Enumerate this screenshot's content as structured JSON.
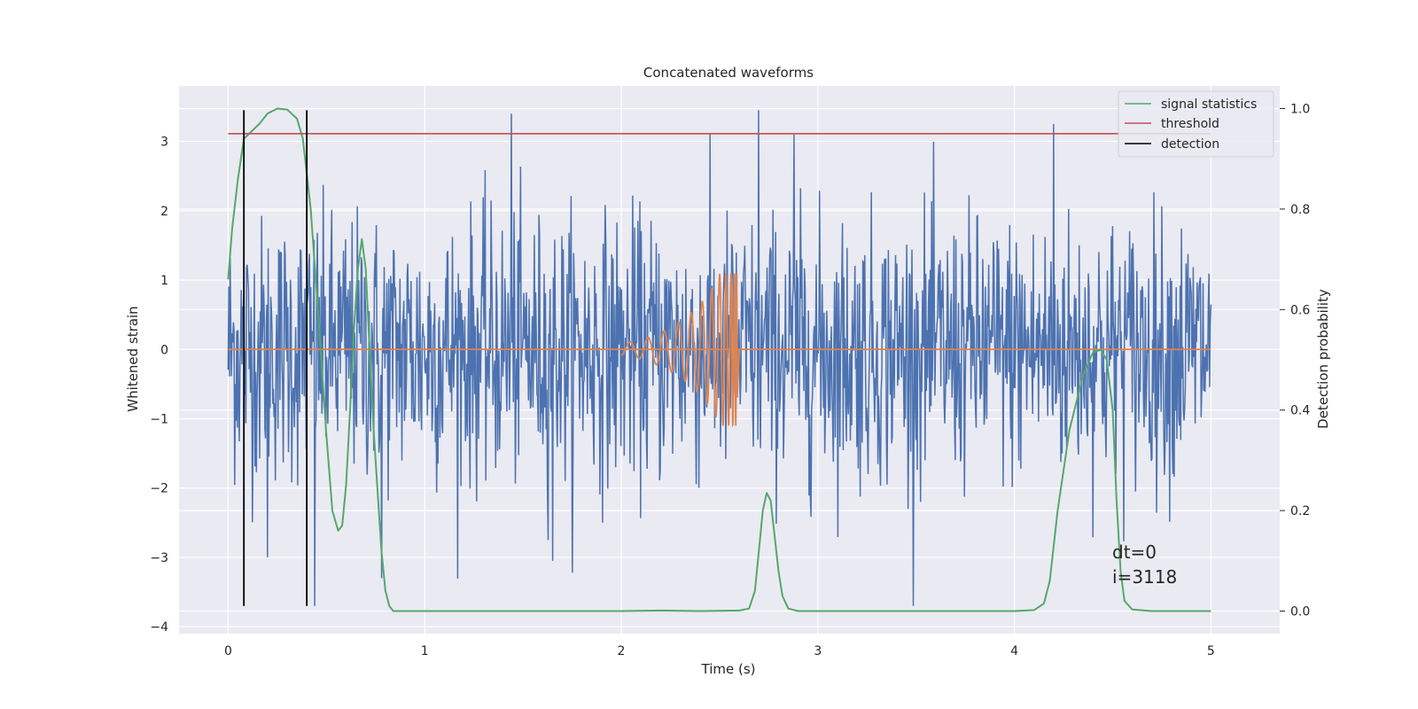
{
  "chart_data": {
    "type": "line",
    "title": "Concatenated waveforms",
    "xlabel": "Time (s)",
    "ylabel": "Whitened strain",
    "y2label": "Detection probability",
    "xlim": [
      -0.25,
      5.35
    ],
    "ylim": [
      -4.1,
      3.8
    ],
    "y2lim": [
      -0.045,
      1.045
    ],
    "xticks": [
      0,
      1,
      2,
      3,
      4,
      5
    ],
    "yticks": [
      -4,
      -3,
      -2,
      -1,
      0,
      1,
      2,
      3
    ],
    "y2ticks": [
      0.0,
      0.2,
      0.4,
      0.6,
      0.8,
      1.0
    ],
    "grid": true,
    "legend_position": "top-right",
    "colors": {
      "background": "#eaeaf2",
      "grid": "#ffffff",
      "noise": "#4c72b0",
      "template": "#dd8452",
      "signal_statistics": "#55a868",
      "threshold": "#c44e52",
      "detection": "#000000"
    },
    "series": [
      {
        "name": "signal statistics",
        "axis": "right",
        "x": [
          0.0,
          0.02,
          0.05,
          0.08,
          0.12,
          0.16,
          0.2,
          0.25,
          0.3,
          0.35,
          0.38,
          0.42,
          0.46,
          0.5,
          0.53,
          0.56,
          0.58,
          0.6,
          0.62,
          0.64,
          0.66,
          0.68,
          0.7,
          0.72,
          0.74,
          0.76,
          0.78,
          0.8,
          0.82,
          0.84,
          0.87,
          0.9,
          1.5,
          2.0,
          2.2,
          2.4,
          2.6,
          2.65,
          2.68,
          2.7,
          2.72,
          2.74,
          2.76,
          2.78,
          2.8,
          2.82,
          2.85,
          2.9,
          3.5,
          4.0,
          4.1,
          4.15,
          4.18,
          4.22,
          4.28,
          4.35,
          4.4,
          4.44,
          4.47,
          4.5,
          4.52,
          4.54,
          4.56,
          4.6,
          4.7,
          4.8,
          4.9,
          5.0
        ],
        "values": [
          0.66,
          0.76,
          0.86,
          0.94,
          0.955,
          0.97,
          0.99,
          1.0,
          0.998,
          0.98,
          0.94,
          0.8,
          0.58,
          0.35,
          0.2,
          0.16,
          0.17,
          0.25,
          0.4,
          0.56,
          0.68,
          0.74,
          0.68,
          0.52,
          0.36,
          0.24,
          0.12,
          0.04,
          0.01,
          0.0,
          0.0,
          0.0,
          0.0,
          0.0,
          0.001,
          0.0,
          0.001,
          0.005,
          0.04,
          0.12,
          0.2,
          0.235,
          0.22,
          0.15,
          0.08,
          0.03,
          0.005,
          0.0,
          0.0,
          0.0,
          0.002,
          0.015,
          0.06,
          0.2,
          0.36,
          0.47,
          0.515,
          0.52,
          0.5,
          0.4,
          0.22,
          0.08,
          0.02,
          0.003,
          0.0,
          0.0,
          0.0,
          0.0
        ]
      },
      {
        "name": "threshold",
        "axis": "right",
        "x": [
          0,
          5
        ],
        "values": [
          0.95,
          0.95
        ]
      },
      {
        "name": "detection",
        "axis": "left",
        "kind": "vertical-lines",
        "x": [
          0.08,
          0.4
        ],
        "y_range": [
          -3.7,
          3.45
        ]
      }
    ],
    "noise": {
      "x_range": [
        0,
        5
      ],
      "samples": 1500,
      "typical_band": [
        -1.0,
        1.0
      ],
      "extremes": [
        {
          "x": 1.44,
          "y": 3.4
        },
        {
          "x": 2.7,
          "y": 3.45
        },
        {
          "x": 2.88,
          "y": 3.1
        },
        {
          "x": 4.2,
          "y": 3.25
        },
        {
          "x": 0.44,
          "y": -3.7
        },
        {
          "x": 0.78,
          "y": -3.3
        },
        {
          "x": 1.65,
          "y": -3.05
        },
        {
          "x": 0.2,
          "y": -3.0
        }
      ]
    },
    "template": {
      "flat_x_range": [
        0,
        5
      ],
      "chirp_x_range": [
        2.0,
        2.59
      ],
      "peak_amplitude": 1.1
    },
    "annotations": [
      "dt=0",
      "i=3118"
    ]
  }
}
